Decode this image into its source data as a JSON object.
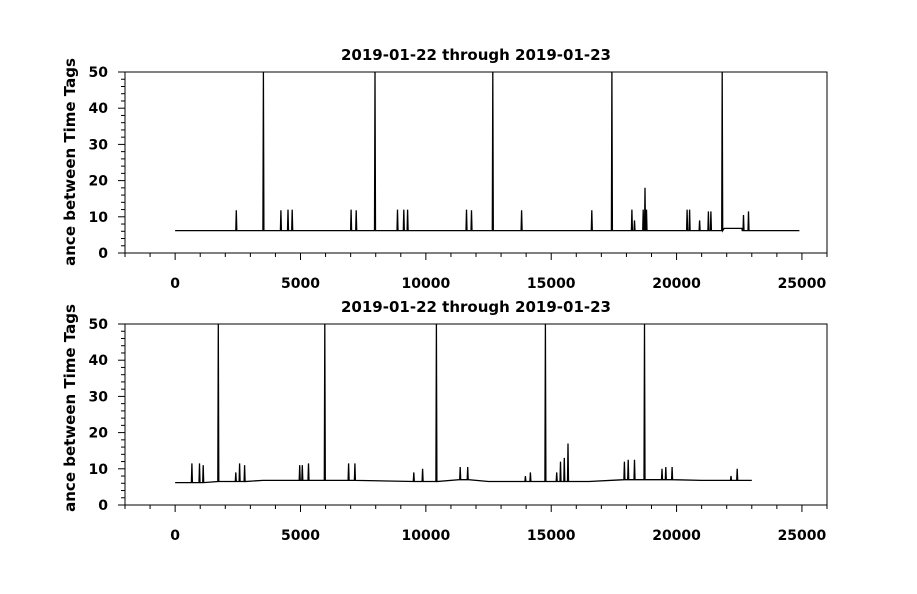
{
  "chart_data": [
    {
      "type": "line",
      "title": "2019-01-22 through 2019-01-23",
      "ylabel": "ance between Time Tags",
      "xlabel": "",
      "xlim": [
        -2000,
        26000
      ],
      "ylim": [
        0,
        50
      ],
      "xticks": [
        0,
        5000,
        10000,
        15000,
        20000,
        25000
      ],
      "yticks": [
        0,
        10,
        20,
        30,
        40,
        50
      ],
      "grid": false,
      "baseline": {
        "x_start": 0,
        "x_end": 24900,
        "y": 6.2
      },
      "series": [
        {
          "points": [
            [
              0,
              6.2
            ],
            [
              2420,
              6.2
            ],
            [
              2440,
              11.8
            ],
            [
              2460,
              6.2
            ],
            [
              3500,
              6.2
            ],
            [
              3520,
              50
            ],
            [
              3540,
              6.2
            ],
            [
              4200,
              6.2
            ],
            [
              4220,
              11.8
            ],
            [
              4240,
              6.2
            ],
            [
              4480,
              6.2
            ],
            [
              4500,
              12
            ],
            [
              4520,
              6.2
            ],
            [
              4650,
              6.2
            ],
            [
              4670,
              12
            ],
            [
              4690,
              6.2
            ],
            [
              7000,
              6.2
            ],
            [
              7020,
              12
            ],
            [
              7040,
              6.2
            ],
            [
              7200,
              6.2
            ],
            [
              7220,
              11.8
            ],
            [
              7240,
              6.2
            ],
            [
              7950,
              6.2
            ],
            [
              7970,
              50
            ],
            [
              7990,
              6.2
            ],
            [
              8850,
              6.2
            ],
            [
              8870,
              12
            ],
            [
              8890,
              6.2
            ],
            [
              9100,
              6.2
            ],
            [
              9120,
              12
            ],
            [
              9140,
              6.2
            ],
            [
              9250,
              6.2
            ],
            [
              9270,
              12
            ],
            [
              9290,
              6.2
            ],
            [
              11600,
              6.2
            ],
            [
              11620,
              12
            ],
            [
              11640,
              6.2
            ],
            [
              11800,
              6.2
            ],
            [
              11820,
              11.8
            ],
            [
              11840,
              6.2
            ],
            [
              12650,
              6.2
            ],
            [
              12670,
              50
            ],
            [
              12690,
              6.2
            ],
            [
              13800,
              6.2
            ],
            [
              13820,
              11.8
            ],
            [
              13840,
              6.2
            ],
            [
              16600,
              6.2
            ],
            [
              16620,
              11.8
            ],
            [
              16640,
              6.2
            ],
            [
              17400,
              6.2
            ],
            [
              17420,
              50
            ],
            [
              17440,
              6.2
            ],
            [
              18200,
              6.2
            ],
            [
              18220,
              12
            ],
            [
              18240,
              6.2
            ],
            [
              18300,
              6.2
            ],
            [
              18320,
              9
            ],
            [
              18340,
              6.2
            ],
            [
              18650,
              6.2
            ],
            [
              18670,
              12
            ],
            [
              18690,
              6.2
            ],
            [
              18720,
              6.2
            ],
            [
              18740,
              18
            ],
            [
              18760,
              6.2
            ],
            [
              18780,
              6.2
            ],
            [
              18800,
              12
            ],
            [
              18820,
              6.2
            ],
            [
              20400,
              6.2
            ],
            [
              20420,
              12
            ],
            [
              20440,
              6.2
            ],
            [
              20500,
              6.2
            ],
            [
              20520,
              12
            ],
            [
              20540,
              6.2
            ],
            [
              20900,
              6.2
            ],
            [
              20920,
              9
            ],
            [
              20940,
              6.2
            ],
            [
              21250,
              6.2
            ],
            [
              21270,
              11.5
            ],
            [
              21290,
              6.2
            ],
            [
              21350,
              6.2
            ],
            [
              21370,
              11.5
            ],
            [
              21390,
              6.2
            ],
            [
              21800,
              6.2
            ],
            [
              21820,
              50
            ],
            [
              21840,
              6.2
            ],
            [
              21900,
              6.8
            ],
            [
              22600,
              6.8
            ],
            [
              22620,
              6.2
            ],
            [
              22650,
              6.2
            ],
            [
              22670,
              10.5
            ],
            [
              22690,
              6.2
            ],
            [
              22850,
              6.2
            ],
            [
              22870,
              11.5
            ],
            [
              22890,
              6.2
            ],
            [
              24900,
              6.2
            ]
          ]
        }
      ]
    },
    {
      "type": "line",
      "title": "2019-01-22 through 2019-01-23",
      "ylabel": "ance between Time Tags",
      "xlabel": "",
      "xlim": [
        -2000,
        26000
      ],
      "ylim": [
        0,
        50
      ],
      "xticks": [
        0,
        5000,
        10000,
        15000,
        20000,
        25000
      ],
      "yticks": [
        0,
        10,
        20,
        30,
        40,
        50
      ],
      "grid": false,
      "series": [
        {
          "points": [
            [
              0,
              6.2
            ],
            [
              650,
              6.2
            ],
            [
              670,
              11.5
            ],
            [
              690,
              6.2
            ],
            [
              950,
              6.2
            ],
            [
              970,
              11.5
            ],
            [
              990,
              6.2
            ],
            [
              1100,
              6.2
            ],
            [
              1120,
              11
            ],
            [
              1140,
              6.2
            ],
            [
              1700,
              6.5
            ],
            [
              1720,
              50
            ],
            [
              1740,
              6.5
            ],
            [
              2400,
              6.5
            ],
            [
              2420,
              9
            ],
            [
              2440,
              6.5
            ],
            [
              2550,
              6.5
            ],
            [
              2570,
              11.5
            ],
            [
              2590,
              6.5
            ],
            [
              2750,
              6.5
            ],
            [
              2770,
              11
            ],
            [
              2790,
              6.5
            ],
            [
              3500,
              6.8
            ],
            [
              4950,
              6.8
            ],
            [
              4970,
              11
            ],
            [
              4990,
              6.8
            ],
            [
              5050,
              6.8
            ],
            [
              5070,
              11
            ],
            [
              5090,
              6.8
            ],
            [
              5300,
              6.8
            ],
            [
              5320,
              11.5
            ],
            [
              5340,
              6.8
            ],
            [
              5950,
              6.8
            ],
            [
              5970,
              50
            ],
            [
              5990,
              6.8
            ],
            [
              6900,
              6.8
            ],
            [
              6920,
              11.5
            ],
            [
              6940,
              6.8
            ],
            [
              7150,
              6.8
            ],
            [
              7170,
              11.5
            ],
            [
              7190,
              6.8
            ],
            [
              9500,
              6.5
            ],
            [
              9520,
              9
            ],
            [
              9540,
              6.5
            ],
            [
              9850,
              6.5
            ],
            [
              9870,
              10
            ],
            [
              9890,
              6.5
            ],
            [
              10400,
              6.5
            ],
            [
              10420,
              50
            ],
            [
              10440,
              6.5
            ],
            [
              11350,
              7
            ],
            [
              11370,
              10.5
            ],
            [
              11390,
              7
            ],
            [
              11650,
              7
            ],
            [
              11670,
              10.5
            ],
            [
              11690,
              7
            ],
            [
              12500,
              6.5
            ],
            [
              13950,
              6.5
            ],
            [
              13970,
              8
            ],
            [
              13990,
              6.5
            ],
            [
              14150,
              6.5
            ],
            [
              14170,
              9
            ],
            [
              14190,
              6.5
            ],
            [
              14750,
              6.5
            ],
            [
              14770,
              50
            ],
            [
              14790,
              6.5
            ],
            [
              15200,
              6.5
            ],
            [
              15220,
              9
            ],
            [
              15240,
              6.5
            ],
            [
              15350,
              6.5
            ],
            [
              15370,
              12
            ],
            [
              15390,
              6.5
            ],
            [
              15500,
              6.5
            ],
            [
              15520,
              13
            ],
            [
              15540,
              6.5
            ],
            [
              15650,
              6.5
            ],
            [
              15670,
              17
            ],
            [
              15690,
              6.5
            ],
            [
              16500,
              6.5
            ],
            [
              17900,
              7
            ],
            [
              17920,
              12
            ],
            [
              17940,
              7
            ],
            [
              18050,
              7
            ],
            [
              18070,
              12.5
            ],
            [
              18090,
              7
            ],
            [
              18300,
              7
            ],
            [
              18320,
              12.5
            ],
            [
              18340,
              7
            ],
            [
              18700,
              7
            ],
            [
              18720,
              50
            ],
            [
              18740,
              7
            ],
            [
              19400,
              7
            ],
            [
              19420,
              10
            ],
            [
              19440,
              7
            ],
            [
              19550,
              7
            ],
            [
              19570,
              10.5
            ],
            [
              19590,
              7
            ],
            [
              19800,
              7
            ],
            [
              19820,
              10.5
            ],
            [
              19840,
              7
            ],
            [
              21000,
              6.8
            ],
            [
              22150,
              6.8
            ],
            [
              22170,
              8
            ],
            [
              22190,
              6.8
            ],
            [
              22400,
              6.8
            ],
            [
              22420,
              10
            ],
            [
              22440,
              6.8
            ],
            [
              23000,
              6.8
            ]
          ]
        }
      ]
    }
  ]
}
